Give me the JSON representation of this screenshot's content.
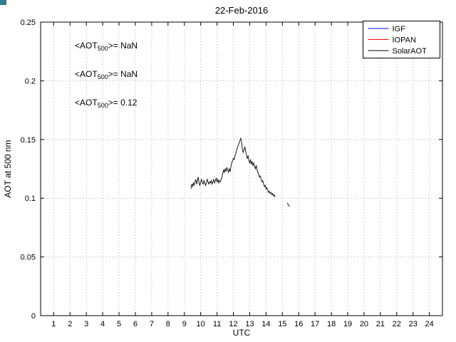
{
  "figure": {
    "title": "22-Feb-2016"
  },
  "annotations": [
    {
      "prefix": "<AOT",
      "sub": "500",
      "suffix": ">=  NaN",
      "color": "#0000ff"
    },
    {
      "prefix": "<AOT",
      "sub": "500",
      "suffix": ">=  NaN",
      "color": "#ff0000"
    },
    {
      "prefix": "<AOT",
      "sub": "500",
      "suffix": ">= 0.12",
      "color": "#000000"
    }
  ],
  "colors": {
    "grid": "#b3b3b3",
    "axis": "#000000",
    "background": "#ffffff",
    "corner_artifact": "#2e7f8f"
  },
  "chart_data": {
    "type": "line",
    "title": "22-Feb-2016",
    "xlabel": "UTC",
    "ylabel": "AOT at 500 nm",
    "xlim": [
      0.2,
      24.8
    ],
    "ylim": [
      0,
      0.25
    ],
    "xticks": [
      1,
      2,
      3,
      4,
      5,
      6,
      7,
      8,
      9,
      10,
      11,
      12,
      13,
      14,
      15,
      16,
      17,
      18,
      19,
      20,
      21,
      22,
      23,
      24
    ],
    "xtick_labels": [
      "1",
      "2",
      "3",
      "4",
      "5",
      "6",
      "7",
      "8",
      "9",
      "10",
      "11",
      "12",
      "13",
      "14",
      "15",
      "16",
      "17",
      "18",
      "19",
      "20",
      "21",
      "22",
      "23",
      "24"
    ],
    "yticks": [
      0,
      0.05,
      0.1,
      0.15,
      0.2,
      0.25
    ],
    "ytick_labels": [
      "0",
      "0.05",
      "0.1",
      "0.15",
      "0.2",
      "0.25"
    ],
    "grid": true,
    "legend_position": "top-right",
    "series": [
      {
        "name": "IGF",
        "color": "#0000ff",
        "x": [],
        "y": []
      },
      {
        "name": "IOPAN",
        "color": "#ff0000",
        "x": [],
        "y": []
      },
      {
        "name": "SolarAOT",
        "color": "#000000",
        "x": [
          9.4,
          9.45,
          9.5,
          9.55,
          9.6,
          9.65,
          9.7,
          9.75,
          9.8,
          9.85,
          9.9,
          9.95,
          10.0,
          10.05,
          10.1,
          10.15,
          10.2,
          10.25,
          10.3,
          10.35,
          10.4,
          10.45,
          10.5,
          10.55,
          10.6,
          10.65,
          10.7,
          10.75,
          10.8,
          10.85,
          10.9,
          10.95,
          11.0,
          11.05,
          11.1,
          11.15,
          11.2,
          11.25,
          11.3,
          11.35,
          11.4,
          11.45,
          11.5,
          11.55,
          11.6,
          11.65,
          11.7,
          11.75,
          11.8,
          11.85,
          11.9,
          11.95,
          12.0,
          12.05,
          12.1,
          12.15,
          12.2,
          12.25,
          12.3,
          12.35,
          12.4,
          12.45,
          12.5,
          12.55,
          12.6,
          12.65,
          12.7,
          12.75,
          12.8,
          12.85,
          12.9,
          12.95,
          13.0,
          13.05,
          13.1,
          13.15,
          13.2,
          13.25,
          13.3,
          13.35,
          13.4,
          13.45,
          13.5,
          13.55,
          13.6,
          13.65,
          13.7,
          13.75,
          13.8,
          13.85,
          13.9,
          13.95,
          14.0,
          14.05,
          14.1,
          14.15,
          14.2,
          14.25,
          14.3,
          14.35,
          14.4,
          14.45,
          14.5,
          14.55,
          null,
          15.3,
          15.38,
          15.45
        ],
        "y": [
          0.108,
          0.112,
          0.11,
          0.113,
          0.111,
          0.114,
          0.116,
          0.112,
          0.115,
          0.118,
          0.113,
          0.111,
          0.114,
          0.116,
          0.113,
          0.112,
          0.115,
          0.113,
          0.111,
          0.113,
          0.116,
          0.114,
          0.112,
          0.114,
          0.113,
          0.115,
          0.112,
          0.114,
          0.116,
          0.113,
          0.115,
          0.117,
          0.114,
          0.116,
          0.113,
          0.115,
          0.114,
          0.116,
          0.118,
          0.121,
          0.124,
          0.122,
          0.125,
          0.123,
          0.126,
          0.124,
          0.122,
          0.125,
          0.123,
          0.127,
          0.13,
          0.132,
          0.134,
          0.133,
          0.136,
          0.138,
          0.141,
          0.143,
          0.145,
          0.147,
          0.149,
          0.151,
          0.148,
          0.142,
          0.139,
          0.141,
          0.144,
          0.14,
          0.137,
          0.134,
          0.136,
          0.132,
          0.13,
          0.133,
          0.129,
          0.131,
          0.128,
          0.13,
          0.127,
          0.125,
          0.128,
          0.124,
          0.122,
          0.12,
          0.118,
          0.119,
          0.116,
          0.114,
          0.115,
          0.112,
          0.11,
          0.111,
          0.108,
          0.109,
          0.107,
          0.105,
          0.106,
          0.104,
          0.105,
          0.103,
          0.104,
          0.102,
          0.103,
          0.101,
          null,
          0.096,
          0.094,
          0.093
        ]
      }
    ]
  }
}
